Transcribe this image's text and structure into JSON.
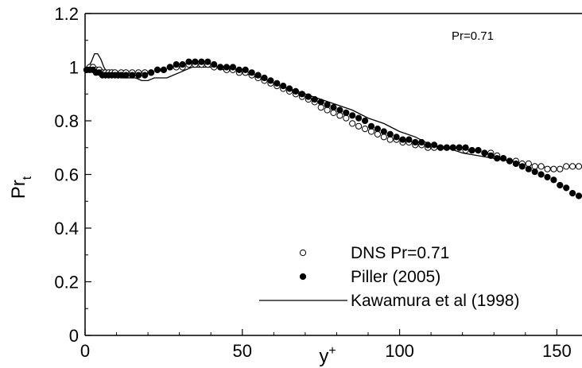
{
  "chart_data": {
    "type": "scatter",
    "title": "",
    "annotation": "Pr=0.71",
    "xlabel": {
      "main": "y",
      "sup": "+"
    },
    "ylabel": {
      "main": "Pr",
      "sub": "t"
    },
    "xlim": [
      0,
      158
    ],
    "ylim": [
      0,
      1.2
    ],
    "xticks": [
      0,
      50,
      100,
      150
    ],
    "yticks": [
      0,
      0.2,
      0.4,
      0.6,
      0.8,
      1,
      1.2
    ],
    "xtick_labels": [
      "0",
      "50",
      "100",
      "150"
    ],
    "ytick_labels": [
      "0",
      "0.2",
      "0.4",
      "0.6",
      "0.8",
      "1",
      "1.2"
    ],
    "grid": false,
    "legend_position": "bottom-right",
    "series": [
      {
        "name": "DNS Pr=0.71",
        "marker": "open-circle",
        "x": [
          0.5,
          1.5,
          2.5,
          3.5,
          4.5,
          5.5,
          6.5,
          7.5,
          8.5,
          9.5,
          10.5,
          11.5,
          13,
          15,
          17,
          19,
          21,
          23,
          25,
          27,
          29,
          31,
          33,
          35,
          37,
          39,
          41,
          43,
          45,
          47,
          49,
          51,
          53,
          55,
          57,
          59,
          61,
          63,
          65,
          67,
          69,
          71,
          73,
          75,
          77,
          79,
          81,
          83,
          85,
          87,
          89,
          91,
          93,
          95,
          97,
          99,
          101,
          103,
          105,
          107,
          109,
          111,
          113,
          115,
          117,
          119,
          121,
          123,
          125,
          127,
          129,
          131,
          133,
          135,
          137,
          139,
          141,
          143,
          145,
          147,
          149,
          151,
          153,
          155,
          157
        ],
        "y": [
          0.99,
          1.0,
          1.0,
          0.99,
          0.99,
          0.98,
          0.98,
          0.98,
          0.98,
          0.98,
          0.97,
          0.98,
          0.98,
          0.98,
          0.98,
          0.98,
          0.98,
          0.99,
          0.99,
          1.0,
          1.0,
          1.0,
          1.01,
          1.01,
          1.01,
          1.01,
          1.0,
          1.0,
          0.99,
          0.99,
          0.98,
          0.98,
          0.97,
          0.96,
          0.95,
          0.94,
          0.93,
          0.92,
          0.91,
          0.9,
          0.89,
          0.88,
          0.87,
          0.85,
          0.84,
          0.83,
          0.82,
          0.81,
          0.79,
          0.78,
          0.77,
          0.76,
          0.75,
          0.74,
          0.73,
          0.73,
          0.72,
          0.72,
          0.71,
          0.71,
          0.7,
          0.7,
          0.7,
          0.7,
          0.7,
          0.7,
          0.69,
          0.69,
          0.69,
          0.68,
          0.68,
          0.67,
          0.66,
          0.65,
          0.65,
          0.64,
          0.64,
          0.63,
          0.63,
          0.62,
          0.62,
          0.62,
          0.63,
          0.63,
          0.63
        ]
      },
      {
        "name": "Piller (2005)",
        "marker": "filled-circle",
        "x": [
          0.5,
          1.5,
          2.5,
          3.5,
          4.5,
          5.5,
          6.5,
          7.5,
          8.5,
          9.5,
          10.5,
          11.5,
          13,
          15,
          17,
          19,
          21,
          23,
          25,
          27,
          29,
          31,
          33,
          35,
          37,
          39,
          41,
          43,
          45,
          47,
          49,
          51,
          53,
          55,
          57,
          59,
          61,
          63,
          65,
          67,
          69,
          71,
          73,
          75,
          77,
          79,
          81,
          83,
          85,
          87,
          89,
          91,
          93,
          95,
          97,
          99,
          101,
          103,
          105,
          107,
          109,
          111,
          113,
          115,
          117,
          119,
          121,
          123,
          125,
          127,
          129,
          131,
          133,
          135,
          137,
          139,
          141,
          143,
          145,
          147,
          149,
          151,
          153,
          155,
          157
        ],
        "y": [
          0.99,
          0.99,
          0.99,
          0.98,
          0.98,
          0.97,
          0.97,
          0.97,
          0.97,
          0.97,
          0.97,
          0.97,
          0.97,
          0.97,
          0.97,
          0.97,
          0.98,
          0.99,
          0.99,
          1.0,
          1.01,
          1.01,
          1.02,
          1.02,
          1.02,
          1.02,
          1.01,
          1.0,
          1.0,
          1.0,
          0.99,
          0.99,
          0.98,
          0.97,
          0.96,
          0.95,
          0.94,
          0.93,
          0.92,
          0.91,
          0.9,
          0.89,
          0.88,
          0.87,
          0.86,
          0.85,
          0.84,
          0.83,
          0.82,
          0.81,
          0.8,
          0.78,
          0.77,
          0.76,
          0.75,
          0.74,
          0.73,
          0.73,
          0.72,
          0.72,
          0.71,
          0.71,
          0.7,
          0.7,
          0.7,
          0.7,
          0.7,
          0.69,
          0.69,
          0.68,
          0.67,
          0.66,
          0.66,
          0.65,
          0.64,
          0.63,
          0.62,
          0.61,
          0.6,
          0.59,
          0.58,
          0.56,
          0.55,
          0.53,
          0.52
        ]
      },
      {
        "name": "Kawamura et al (1998)",
        "marker": "line",
        "x": [
          0,
          1,
          2,
          3,
          4,
          5,
          6,
          7,
          8,
          9,
          10,
          12,
          14,
          16,
          18,
          20,
          22,
          24,
          26,
          28,
          30,
          32,
          34,
          36,
          38,
          40,
          42,
          44,
          46,
          48,
          50,
          55,
          60,
          65,
          70,
          75,
          80,
          85,
          90,
          95,
          100,
          105,
          110,
          115,
          120,
          125,
          130,
          135,
          140,
          145,
          150,
          152
        ],
        "y": [
          0.98,
          1.0,
          1.02,
          1.05,
          1.05,
          1.03,
          1.0,
          0.98,
          0.97,
          0.97,
          0.97,
          0.96,
          0.96,
          0.96,
          0.95,
          0.95,
          0.96,
          0.96,
          0.96,
          0.97,
          0.98,
          0.99,
          1.0,
          1.0,
          1.0,
          1.0,
          1.0,
          0.99,
          0.99,
          0.99,
          0.98,
          0.96,
          0.94,
          0.92,
          0.9,
          0.88,
          0.86,
          0.84,
          0.81,
          0.79,
          0.76,
          0.74,
          0.71,
          0.7,
          0.68,
          0.67,
          0.66,
          0.65,
          0.64,
          0.63,
          0.62,
          0.62
        ]
      }
    ]
  }
}
